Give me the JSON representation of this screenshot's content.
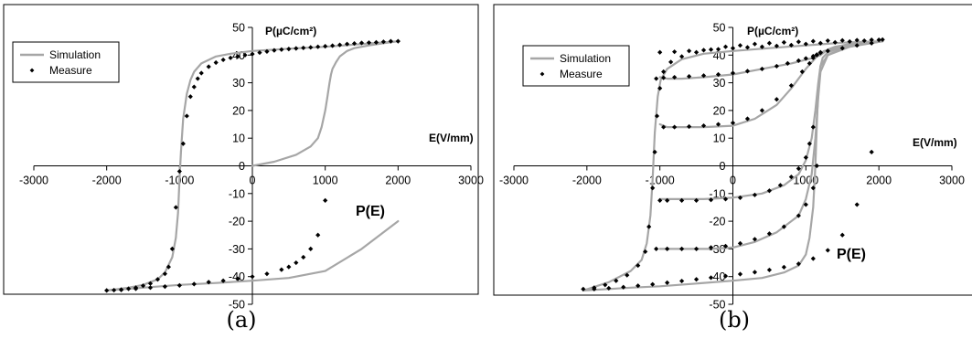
{
  "figure": {
    "captions": [
      "(a)",
      "(b)"
    ]
  },
  "chart_data": [
    {
      "type": "line",
      "panel": "a",
      "xlabel": "E(V/mm)",
      "ylabel": "P(µC/cm²)",
      "annotation": "P(E)",
      "xlim": [
        -3000,
        3000
      ],
      "ylim": [
        -50,
        50
      ],
      "xticks": [
        -3000,
        -2000,
        -1000,
        0,
        1000,
        2000,
        3000
      ],
      "yticks": [
        -50,
        -40,
        -30,
        -20,
        -10,
        0,
        10,
        20,
        30,
        40,
        50
      ],
      "grid": false,
      "legend_position": "top-left",
      "legend": [
        "Simulation",
        "Measure"
      ],
      "colors": {
        "simulation": "#a6a6a6",
        "measure": "#000000"
      },
      "series": [
        {
          "name": "Simulation",
          "style": "line",
          "segments": [
            {
              "x": [
                0,
                300,
                600,
                800,
                900,
                950,
                1000,
                1030,
                1060,
                1080,
                1100,
                1150,
                1200,
                1300,
                1400,
                1600,
                1800,
                2000
              ],
              "y": [
                0,
                1.5,
                4,
                7,
                10,
                14,
                20,
                25,
                30,
                33,
                35,
                37.5,
                39.5,
                41.5,
                42.5,
                43.5,
                44.3,
                45
              ]
            },
            {
              "x": [
                2000,
                1500,
                1000,
                500,
                0,
                -300,
                -500,
                -700,
                -800,
                -850,
                -900,
                -950,
                -980,
                -1000,
                -1020,
                -1050,
                -1100,
                -1200,
                -1300,
                -1500,
                -1700,
                -2000
              ],
              "y": [
                45,
                44,
                43,
                42.3,
                41.5,
                40.5,
                39.5,
                37,
                34,
                31,
                26,
                17,
                5,
                -5,
                -17,
                -26,
                -33,
                -38.5,
                -41,
                -43,
                -44,
                -45
              ]
            },
            {
              "x": [
                -2000,
                -1500,
                -1000,
                -500,
                0,
                500,
                1000,
                1500,
                2000
              ],
              "y": [
                -45,
                -44,
                -43,
                -42.3,
                -41.5,
                -40.5,
                -38,
                -30,
                -20
              ]
            }
          ]
        },
        {
          "name": "Measure",
          "style": "points",
          "x": [
            2000,
            1900,
            1800,
            1700,
            1600,
            1500,
            1400,
            1300,
            1200,
            1100,
            1000,
            900,
            800,
            700,
            600,
            500,
            400,
            300,
            200,
            100,
            0,
            -100,
            -200,
            -300,
            -400,
            -500,
            -600,
            -700,
            -750,
            -800,
            -850,
            -900,
            -950,
            -1000,
            -1050,
            -1100,
            -1150,
            -1200,
            -1300,
            -1400,
            -1500,
            -1600,
            -1700,
            -1800,
            -1900,
            -2000,
            -1800,
            -1600,
            -1400,
            -1200,
            -1000,
            -800,
            -600,
            -400,
            -200,
            0,
            200,
            400,
            500,
            600,
            700,
            800,
            900,
            1000
          ],
          "y": [
            45,
            45,
            44.8,
            44.6,
            44.5,
            44.4,
            44.2,
            44,
            43.7,
            43.4,
            43.2,
            43,
            42.8,
            42.6,
            42.4,
            42.2,
            42,
            41.7,
            41.3,
            40.9,
            40.4,
            40,
            39.5,
            39,
            38.3,
            37.3,
            35.8,
            33.5,
            31.5,
            28.5,
            25,
            18,
            8,
            -2,
            -15,
            -30,
            -36.5,
            -39,
            -41,
            -42.5,
            -43.3,
            -44,
            -44.4,
            -44.7,
            -44.9,
            -45,
            -44.8,
            -44.4,
            -44,
            -43.6,
            -43.2,
            -42.7,
            -42,
            -41.5,
            -40.8,
            -40,
            -39,
            -37.5,
            -36.5,
            -35,
            -33,
            -30,
            -25,
            -12.5
          ]
        }
      ]
    },
    {
      "type": "line",
      "panel": "b",
      "xlabel": "E(V/mm)",
      "ylabel": "P(µC/cm²)",
      "annotation": "P(E)",
      "xlim": [
        -3000,
        3000
      ],
      "ylim": [
        -50,
        50
      ],
      "xticks": [
        -3000,
        -2000,
        -1000,
        0,
        1000,
        2000,
        3000
      ],
      "yticks": [
        -50,
        -40,
        -30,
        -20,
        -10,
        0,
        10,
        20,
        30,
        40,
        50
      ],
      "grid": false,
      "legend_position": "top-left",
      "legend": [
        "Simulation",
        "Measure"
      ],
      "colors": {
        "simulation": "#a6a6a6",
        "measure": "#000000"
      },
      "series": [
        {
          "name": "Simulation",
          "style": "line",
          "segments": [
            {
              "x": [
                -2050,
                -1700,
                -1400,
                -1250,
                -1180,
                -1130,
                -1100,
                -1070,
                -1030,
                -990,
                -900,
                -700,
                -400,
                0,
                500,
                1000,
                1500,
                2000
              ],
              "y": [
                -45,
                -42,
                -38,
                -34,
                -28,
                -18,
                -5,
                12,
                25,
                31,
                35,
                38.5,
                40.5,
                41.5,
                42.5,
                43.5,
                44.5,
                45
              ]
            },
            {
              "x": [
                2050,
                1600,
                1300,
                1200,
                1170,
                1150,
                1130,
                1100,
                1050,
                1000,
                900,
                700,
                400,
                0,
                -500,
                -1000,
                -1400,
                -1700,
                -2050
              ],
              "y": [
                45,
                43,
                40,
                36,
                28,
                15,
                0,
                -15,
                -26,
                -32,
                -36,
                -38.5,
                -40.5,
                -41.5,
                -42.5,
                -43.5,
                -44,
                -44.5,
                -45
              ]
            },
            {
              "x": [
                -1000,
                -900,
                -700,
                -400,
                0,
                300,
                600,
                800,
                1000,
                1100,
                1150,
                1200,
                1250,
                1400,
                1600,
                1800,
                2050
              ],
              "y": [
                15,
                14,
                14,
                14,
                14.5,
                17,
                22,
                28,
                35,
                38,
                39.5,
                40.5,
                41.5,
                42.5,
                43.5,
                44.3,
                45
              ]
            },
            {
              "x": [
                -1000,
                -700,
                -400,
                0,
                400,
                700,
                900,
                1000,
                1080,
                1130,
                1170,
                1200,
                1230,
                1300,
                1500,
                1800,
                2050
              ],
              "y": [
                -12,
                -12,
                -12,
                -11.5,
                -10,
                -7,
                -3,
                2,
                10,
                20,
                30,
                36,
                39,
                41,
                43,
                44.3,
                45
              ]
            },
            {
              "x": [
                -1000,
                -700,
                -300,
                0,
                300,
                600,
                900,
                1000,
                1080,
                1130,
                1170,
                1200,
                1300,
                1500,
                1800,
                2050
              ],
              "y": [
                -30,
                -30,
                -30,
                -29.5,
                -27.5,
                -24,
                -18,
                -12,
                -3,
                10,
                25,
                34,
                40,
                42.5,
                44,
                45
              ]
            },
            {
              "x": [
                -1000,
                -900,
                -700,
                -400,
                0,
                400,
                800,
                1100,
                1200,
                1250,
                1300,
                1400,
                1600,
                1800,
                2050
              ],
              "y": [
                32,
                31.5,
                31.5,
                32,
                33,
                35,
                37,
                39,
                40,
                41,
                42,
                43,
                44,
                44.5,
                45
              ]
            }
          ]
        },
        {
          "name": "Measure",
          "style": "points",
          "x": [
            -2050,
            -1900,
            -1750,
            -1600,
            -1450,
            -1300,
            -1200,
            -1150,
            -1100,
            -1070,
            -1040,
            -1000,
            -950,
            -850,
            -700,
            -500,
            -300,
            -100,
            100,
            300,
            500,
            700,
            900,
            1100,
            1300,
            1500,
            1700,
            1900,
            2050,
            -950,
            -800,
            -600,
            -400,
            -200,
            0,
            200,
            400,
            600,
            800,
            950,
            1050,
            1100,
            1150,
            1200,
            -1000,
            -900,
            -700,
            -500,
            -300,
            -100,
            100,
            300,
            500,
            650,
            800,
            900,
            1000,
            1050,
            1100,
            -1050,
            -900,
            -700,
            -500,
            -300,
            -100,
            100,
            300,
            500,
            700,
            900,
            1000,
            1100,
            1150,
            -1050,
            -950,
            -800,
            -600,
            -400,
            -200,
            0,
            200,
            400,
            600,
            750,
            900,
            1000,
            1100,
            1150,
            1200,
            1300,
            1500,
            1700,
            1900,
            -1000,
            -800,
            -600,
            -400,
            -200,
            0,
            200,
            400,
            600,
            800,
            1000,
            1200,
            1400,
            1600,
            1800,
            2000,
            -1900,
            -1700,
            -1500,
            -1300,
            -1100,
            -900,
            -700,
            -500,
            -300,
            -100,
            100,
            300,
            500,
            700,
            900,
            1100,
            1300,
            1500,
            1700,
            1900
          ],
          "y": [
            -44.5,
            -44,
            -43,
            -41.5,
            -39.5,
            -36,
            -31,
            -22,
            -8,
            5,
            18,
            28,
            34,
            37.5,
            39.5,
            41,
            42,
            43,
            43.5,
            44,
            44.3,
            44.6,
            44.8,
            45,
            45.2,
            45.3,
            45.4,
            45.5,
            45.6,
            14,
            14,
            14.2,
            14.5,
            15,
            15.5,
            17,
            20,
            24,
            29,
            34,
            37,
            39,
            40,
            41,
            -12.5,
            -12.5,
            -12.5,
            -12.5,
            -12.3,
            -12,
            -11.5,
            -10.5,
            -9,
            -7,
            -4,
            -1,
            3,
            8,
            14,
            -30,
            -30,
            -30,
            -30,
            -29.5,
            -29,
            -28,
            -26.5,
            -24.5,
            -22,
            -18,
            -14,
            -8,
            0,
            31.5,
            31.8,
            32,
            32.3,
            32.6,
            33,
            33.5,
            34.2,
            35,
            36,
            37,
            38,
            38.8,
            39.6,
            40.2,
            40.8,
            41.5,
            42.5,
            43.5,
            44.3,
            41,
            41.2,
            41.5,
            41.8,
            42.1,
            42.5,
            42.8,
            43,
            43.3,
            43.6,
            44,
            44.3,
            44.6,
            44.9,
            45.2,
            45.5,
            -44.5,
            -44.2,
            -43.8,
            -43.3,
            -42.8,
            -42.2,
            -41.6,
            -41,
            -40.4,
            -39.8,
            -39.1,
            -38.4,
            -37.6,
            -36.6,
            -35.4,
            -33.5,
            -30.5,
            -25,
            -14,
            5
          ]
        }
      ]
    }
  ]
}
